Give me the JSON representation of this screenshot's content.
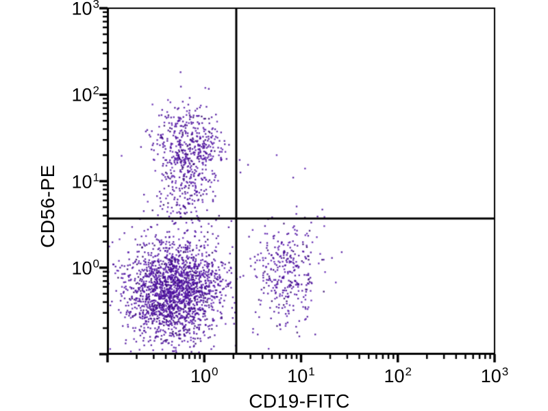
{
  "figure": {
    "background_color": "#ffffff",
    "axis_color": "#000000"
  },
  "chart_data": {
    "type": "scatter",
    "subtype": "flow-cytometry-quadrant-dot-plot",
    "title": "",
    "xlabel": "CD19-FITC",
    "ylabel": "CD56-PE",
    "x_scale": "log",
    "y_scale": "log",
    "xlim": [
      0.1,
      1000
    ],
    "ylim": [
      0.1,
      1000
    ],
    "x_tick_exponents": [
      0,
      1,
      2,
      3
    ],
    "y_tick_exponents": [
      0,
      1,
      2,
      3
    ],
    "tick_base": "10",
    "grid": false,
    "legend": "none",
    "quadrant_gate": {
      "x": 2.14,
      "y": 3.7
    },
    "dot_palette": [
      "#4a0e9b",
      "#5d1fb0",
      "#33076b"
    ],
    "dot_alpha": 0.85,
    "dot_size_px": 2.4,
    "seed": 1337,
    "clusters": [
      {
        "name": "double-negative-lymphocytes",
        "quadrant": "lower-left",
        "center_log10": [
          -0.31,
          -0.27
        ],
        "sigma_log10": [
          0.24,
          0.27
        ],
        "count": 1900
      },
      {
        "name": "cd56-positive-nk-cells",
        "quadrant": "upper-left",
        "center_log10": [
          -0.17,
          1.33
        ],
        "sigma_log10": [
          0.18,
          0.27
        ],
        "count": 550
      },
      {
        "name": "nk-dim-tail",
        "quadrant": "upper-left",
        "center_log10": [
          -0.2,
          0.75
        ],
        "sigma_log10": [
          0.16,
          0.24
        ],
        "count": 85
      },
      {
        "name": "cd19-positive-b-cells",
        "quadrant": "lower-right",
        "center_log10": [
          0.85,
          -0.08
        ],
        "sigma_log10": [
          0.17,
          0.28
        ],
        "count": 320
      },
      {
        "name": "background-scatter",
        "quadrant": "lower-left",
        "center_log10": [
          -0.25,
          -0.2
        ],
        "sigma_log10": [
          0.5,
          0.45
        ],
        "count": 140
      }
    ],
    "sparse_points": [
      [
        5.6,
        20
      ],
      [
        11,
        14
      ],
      [
        8.3,
        11
      ],
      [
        9,
        5.1
      ],
      [
        16.6,
        4.7
      ],
      [
        14.8,
        3.9
      ]
    ]
  }
}
